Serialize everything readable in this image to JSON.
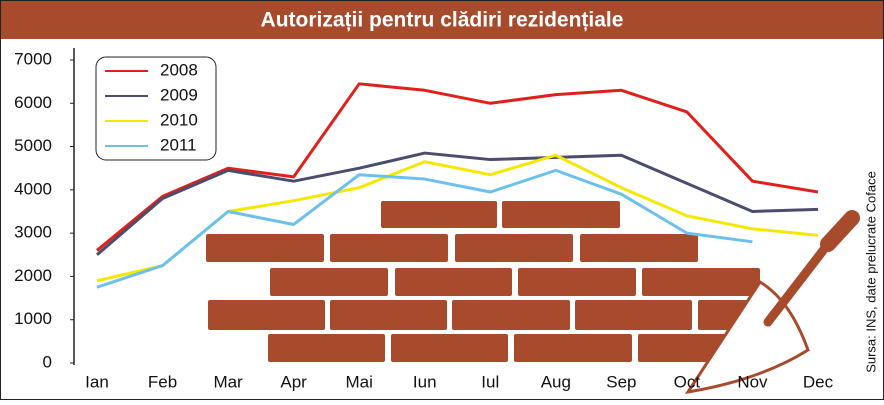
{
  "chart_data": {
    "type": "line",
    "title": "Autorizații pentru clădiri rezidențiale",
    "source": "Sursa: INS, date prelucrate Coface",
    "categories": [
      "Ian",
      "Feb",
      "Mar",
      "Apr",
      "Mai",
      "Iun",
      "Iul",
      "Aug",
      "Sep",
      "Oct",
      "Nov",
      "Dec"
    ],
    "series": [
      {
        "name": "2008",
        "color": "#e0201c",
        "values": [
          2600,
          3850,
          4500,
          4300,
          6450,
          6300,
          6000,
          6200,
          6300,
          5800,
          4200,
          3950
        ]
      },
      {
        "name": "2009",
        "color": "#4a4d6e",
        "values": [
          2500,
          3800,
          4450,
          4200,
          4500,
          4850,
          4700,
          4750,
          4800,
          4150,
          3500,
          3550
        ]
      },
      {
        "name": "2010",
        "color": "#f5e800",
        "values": [
          1900,
          2250,
          3500,
          3750,
          4050,
          4650,
          4350,
          4800,
          4050,
          3400,
          3100,
          2950
        ]
      },
      {
        "name": "2011",
        "color": "#6cc0ec",
        "values": [
          1750,
          2250,
          3500,
          3200,
          4350,
          4250,
          3950,
          4450,
          3900,
          3000,
          2800,
          null
        ]
      }
    ],
    "ylim": [
      0,
      7000
    ],
    "yticks": [
      0,
      1000,
      2000,
      3000,
      4000,
      5000,
      6000,
      7000
    ],
    "legend": "top-left"
  }
}
